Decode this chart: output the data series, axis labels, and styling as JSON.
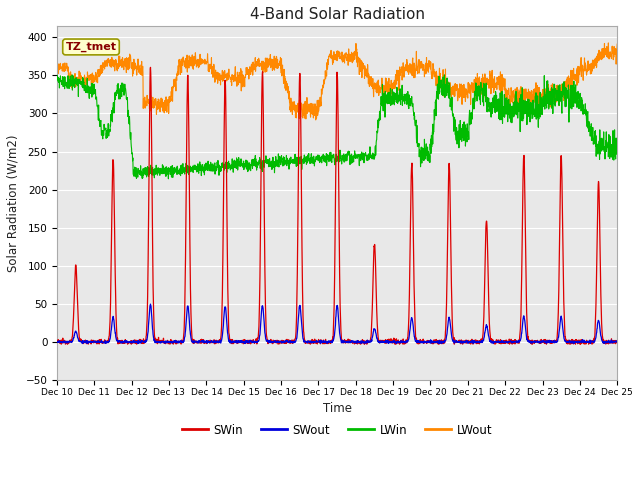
{
  "title": "4-Band Solar Radiation",
  "ylabel": "Solar Radiation (W/m2)",
  "xlabel": "Time",
  "ylim": [
    -50,
    415
  ],
  "n_days": 15,
  "tick_labels": [
    "Dec 10",
    "Dec 11",
    "Dec 12",
    "Dec 13",
    "Dec 14",
    "Dec 15",
    "Dec 16",
    "Dec 17",
    "Dec 18",
    "Dec 19",
    "Dec 20",
    "Dec 21",
    "Dec 22",
    "Dec 23",
    "Dec 24",
    "Dec 25"
  ],
  "annotation_label": "TZ_tmet",
  "annotation_box_color": "#ffffcc",
  "annotation_box_edge": "#999900",
  "colors": {
    "SWin": "#dd0000",
    "SWout": "#0000dd",
    "LWin": "#00bb00",
    "LWout": "#ff8800"
  },
  "fig_bg": "#ffffff",
  "plot_bg": "#e8e8e8",
  "grid_color": "#ffffff",
  "yticks": [
    -50,
    0,
    50,
    100,
    150,
    200,
    250,
    300,
    350,
    400
  ]
}
